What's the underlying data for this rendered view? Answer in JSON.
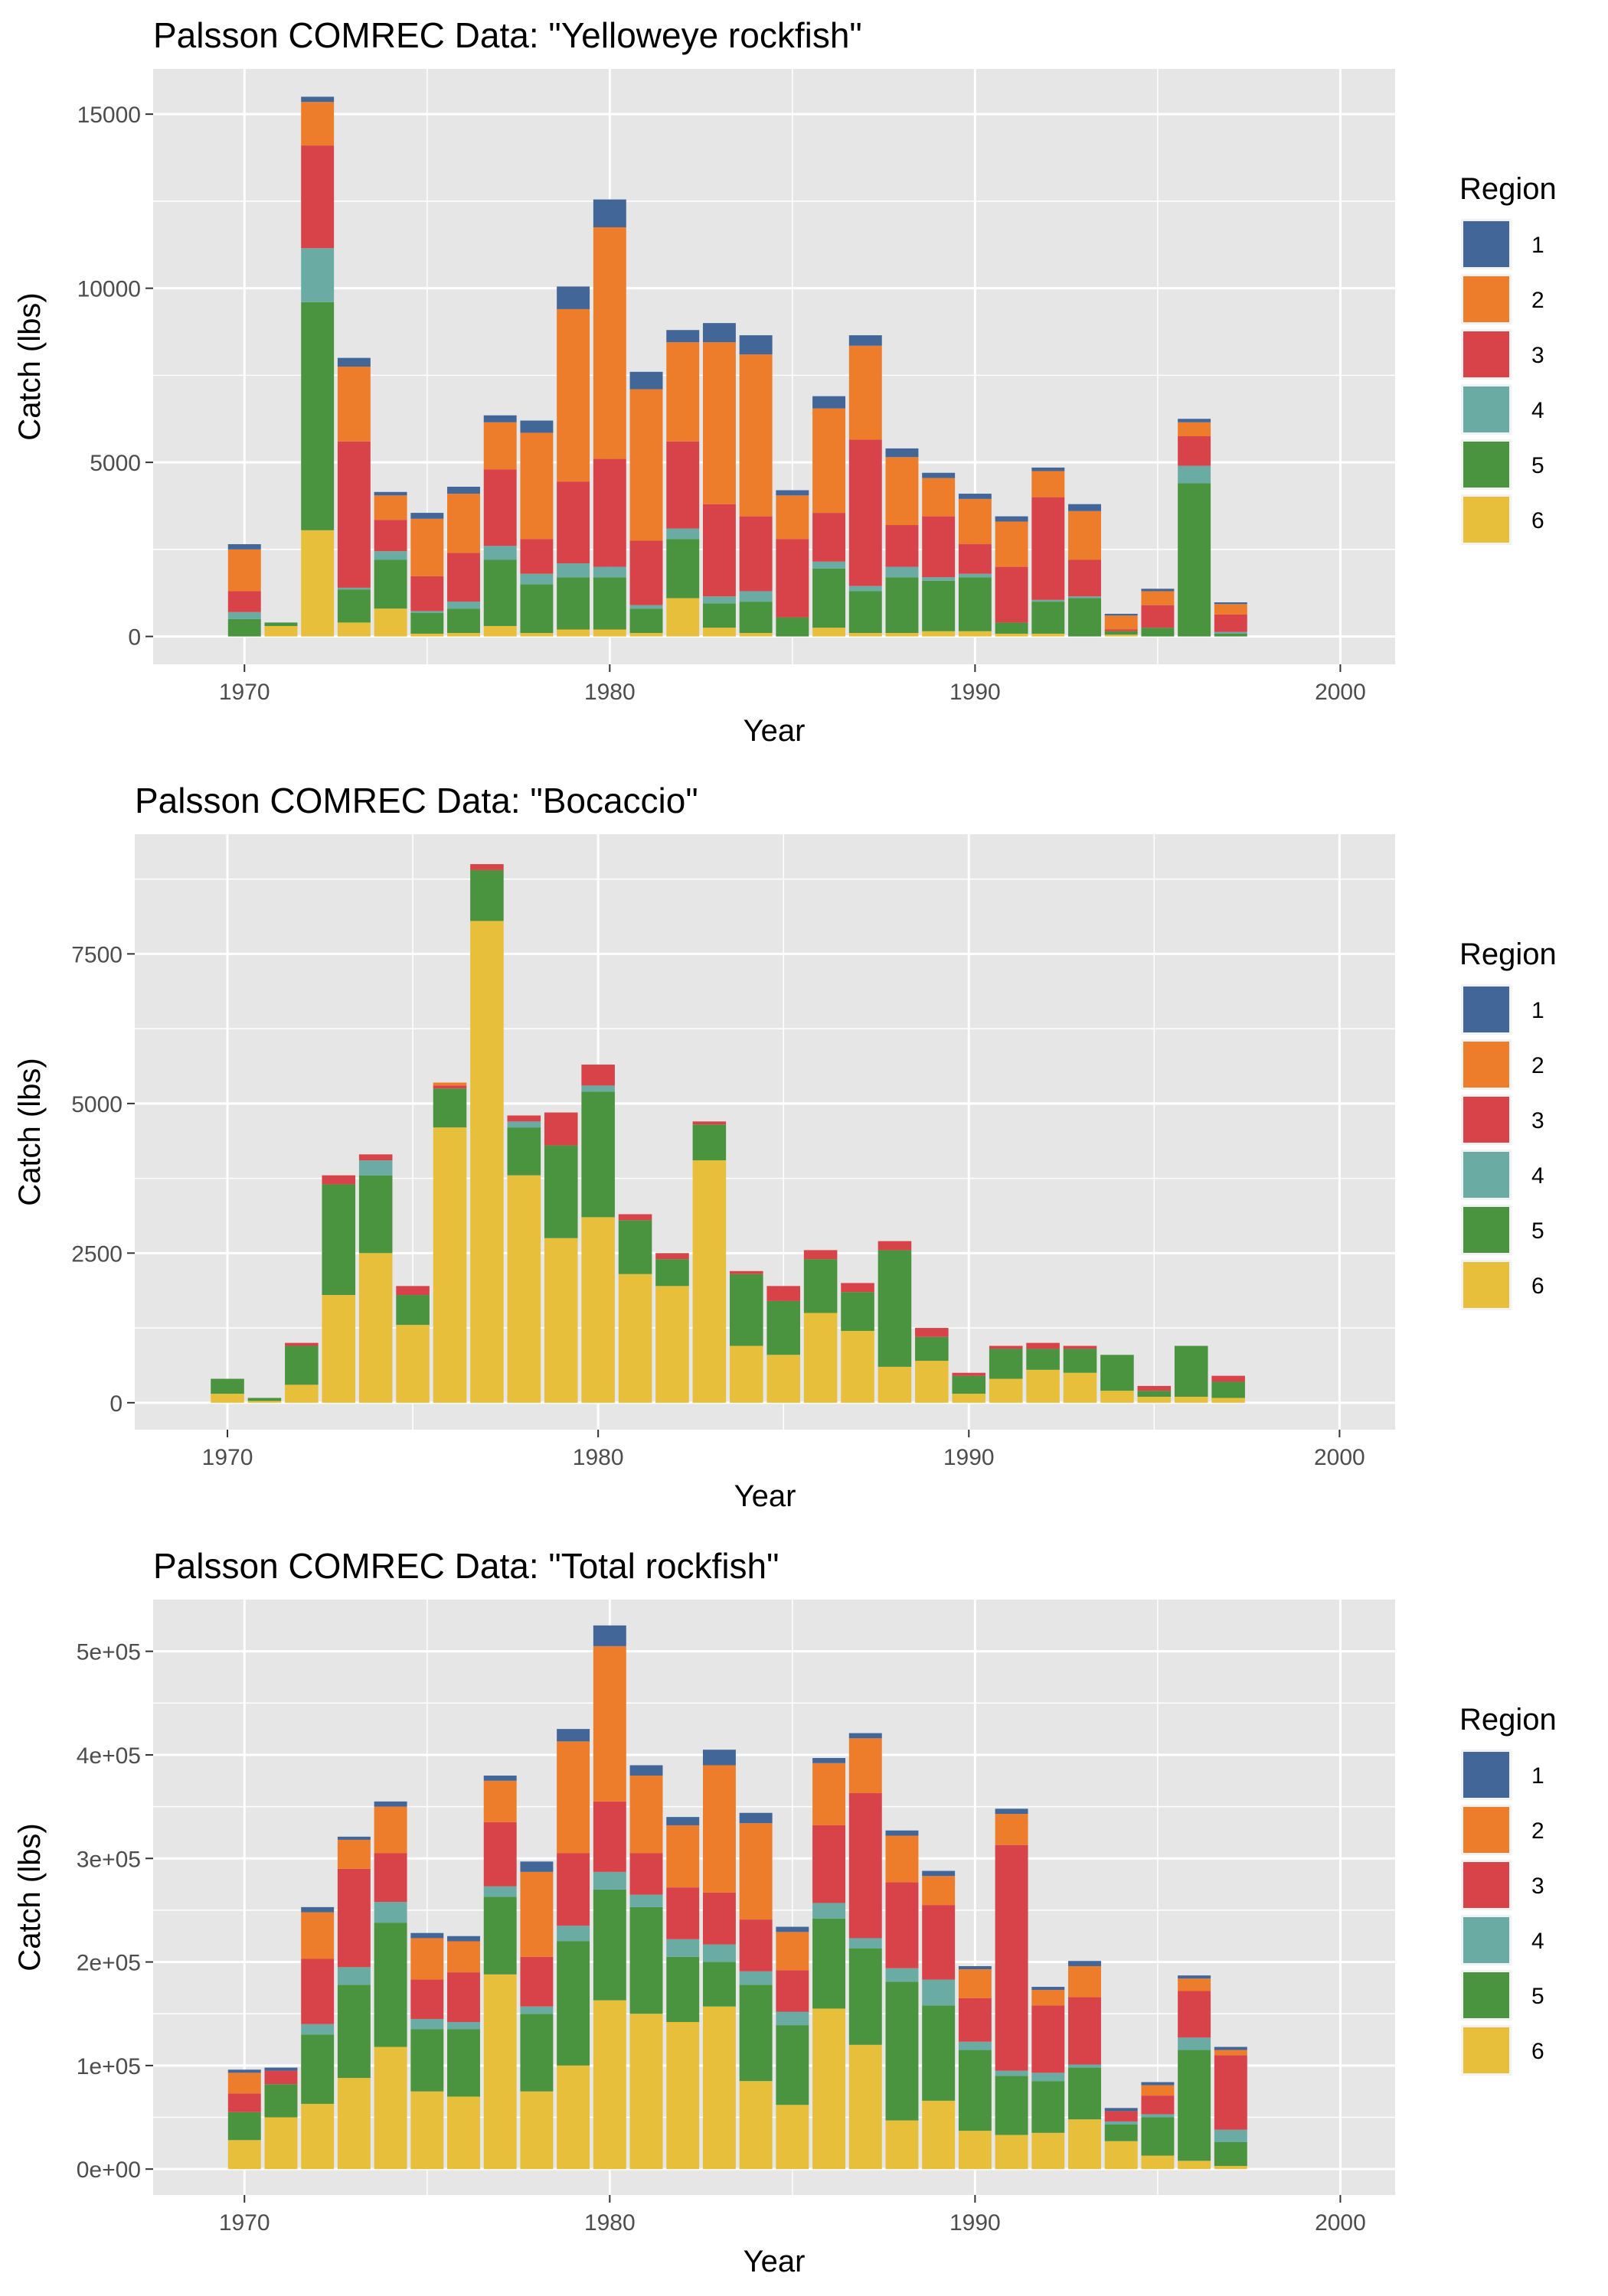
{
  "figure": {
    "legend_title": "Region",
    "legend_items": [
      "1",
      "2",
      "3",
      "4",
      "5",
      "6"
    ],
    "colors": {
      "1": "#436699",
      "2": "#ED7D2A",
      "3": "#D8434A",
      "4": "#6AABA4",
      "5": "#4A943F",
      "6": "#E8BF3A",
      "panel": "#E6E6E6",
      "grid": "#FFFFFF"
    }
  },
  "chart_data": [
    {
      "type": "bar",
      "stacked": true,
      "title": "Palsson COMREC Data: \"Yelloweye rockfish\"",
      "xlabel": "Year",
      "ylabel": "Catch (lbs)",
      "xlim": [
        1967.5,
        2001.5
      ],
      "ylim": [
        -800,
        16300
      ],
      "xticks": [
        1970,
        1980,
        1990,
        2000
      ],
      "xtick_labels": [
        "1970",
        "1980",
        "1990",
        "2000"
      ],
      "yticks": [
        0,
        5000,
        10000,
        15000
      ],
      "ytick_labels": [
        "0",
        "5000",
        "10000",
        "15000"
      ],
      "legend_title": "Region",
      "legend_position": "right",
      "grid": true,
      "x": [
        1970,
        1971,
        1972,
        1973,
        1974,
        1975,
        1976,
        1977,
        1978,
        1979,
        1980,
        1981,
        1982,
        1983,
        1984,
        1985,
        1986,
        1987,
        1988,
        1989,
        1990,
        1991,
        1992,
        1993,
        1994,
        1995,
        1996,
        1997
      ],
      "series": [
        {
          "name": "6",
          "values": [
            0,
            300,
            3050,
            400,
            800,
            80,
            100,
            300,
            100,
            200,
            200,
            100,
            1100,
            250,
            100,
            0,
            250,
            100,
            100,
            150,
            150,
            80,
            80,
            0,
            50,
            0,
            0,
            0
          ]
        },
        {
          "name": "5",
          "values": [
            500,
            100,
            6550,
            950,
            1400,
            600,
            700,
            1900,
            1400,
            1500,
            1500,
            700,
            1700,
            700,
            900,
            550,
            1700,
            1200,
            1600,
            1450,
            1550,
            320,
            920,
            1100,
            100,
            250,
            4400,
            80
          ]
        },
        {
          "name": "4",
          "values": [
            200,
            0,
            1550,
            50,
            250,
            50,
            200,
            400,
            300,
            400,
            300,
            100,
            300,
            200,
            300,
            0,
            200,
            150,
            300,
            100,
            100,
            0,
            50,
            50,
            0,
            0,
            500,
            50
          ]
        },
        {
          "name": "3",
          "values": [
            600,
            0,
            2950,
            4200,
            900,
            1000,
            1400,
            2200,
            1000,
            2350,
            3100,
            1850,
            2500,
            2650,
            2150,
            2250,
            1400,
            4200,
            1200,
            1750,
            850,
            1600,
            2950,
            1050,
            50,
            650,
            850,
            500
          ]
        },
        {
          "name": "2",
          "values": [
            1200,
            0,
            1250,
            2150,
            700,
            1650,
            1700,
            1350,
            3050,
            4950,
            6650,
            4350,
            2850,
            4650,
            4650,
            1250,
            3000,
            2700,
            1950,
            1100,
            1300,
            1300,
            750,
            1400,
            400,
            400,
            400,
            300
          ]
        },
        {
          "name": "1",
          "values": [
            150,
            0,
            150,
            250,
            100,
            170,
            200,
            200,
            350,
            650,
            800,
            500,
            350,
            550,
            550,
            150,
            350,
            300,
            250,
            150,
            150,
            150,
            100,
            200,
            50,
            70,
            100,
            50
          ]
        }
      ]
    },
    {
      "type": "bar",
      "stacked": true,
      "title": "Palsson COMREC Data: \"Bocaccio\"",
      "xlabel": "Year",
      "ylabel": "Catch (lbs)",
      "xlim": [
        1967.5,
        2001.5
      ],
      "ylim": [
        -450,
        9500
      ],
      "xticks": [
        1970,
        1980,
        1990,
        2000
      ],
      "xtick_labels": [
        "1970",
        "1980",
        "1990",
        "2000"
      ],
      "yticks": [
        0,
        2500,
        5000,
        7500
      ],
      "ytick_labels": [
        "0",
        "2500",
        "5000",
        "7500"
      ],
      "legend_title": "Region",
      "legend_position": "right",
      "grid": true,
      "x": [
        1970,
        1971,
        1972,
        1973,
        1974,
        1975,
        1976,
        1977,
        1978,
        1979,
        1980,
        1981,
        1982,
        1983,
        1984,
        1985,
        1986,
        1987,
        1988,
        1989,
        1990,
        1991,
        1992,
        1993,
        1994,
        1995,
        1996,
        1997
      ],
      "series": [
        {
          "name": "6",
          "values": [
            150,
            30,
            300,
            1800,
            2500,
            1300,
            4600,
            8050,
            3800,
            2750,
            3100,
            2150,
            1950,
            4050,
            950,
            800,
            1500,
            1200,
            600,
            700,
            150,
            400,
            550,
            500,
            200,
            100,
            100,
            80
          ]
        },
        {
          "name": "5",
          "values": [
            250,
            50,
            650,
            1850,
            1300,
            500,
            650,
            850,
            800,
            1550,
            2100,
            900,
            450,
            600,
            1200,
            900,
            900,
            650,
            1950,
            400,
            300,
            500,
            350,
            400,
            600,
            100,
            850,
            270
          ]
        },
        {
          "name": "4",
          "values": [
            0,
            0,
            0,
            0,
            250,
            0,
            0,
            0,
            100,
            0,
            100,
            0,
            0,
            0,
            0,
            0,
            0,
            0,
            0,
            0,
            0,
            0,
            0,
            0,
            0,
            0,
            0,
            0
          ]
        },
        {
          "name": "3",
          "values": [
            0,
            0,
            50,
            150,
            100,
            150,
            50,
            100,
            100,
            550,
            350,
            100,
            100,
            50,
            50,
            250,
            150,
            150,
            150,
            150,
            50,
            50,
            100,
            50,
            0,
            80,
            0,
            100
          ]
        },
        {
          "name": "2",
          "values": [
            0,
            0,
            0,
            0,
            0,
            0,
            50,
            0,
            0,
            0,
            0,
            0,
            0,
            0,
            0,
            0,
            0,
            0,
            0,
            0,
            0,
            0,
            0,
            0,
            0,
            0,
            0,
            0
          ]
        },
        {
          "name": "1",
          "values": [
            0,
            0,
            0,
            0,
            0,
            0,
            0,
            0,
            0,
            0,
            0,
            0,
            0,
            0,
            0,
            0,
            0,
            0,
            0,
            0,
            0,
            0,
            0,
            0,
            0,
            0,
            0,
            0
          ]
        }
      ]
    },
    {
      "type": "bar",
      "stacked": true,
      "title": "Palsson COMREC Data: \"Total rockfish\"",
      "xlabel": "Year",
      "ylabel": "Catch (lbs)",
      "xlim": [
        1967.5,
        2001.5
      ],
      "ylim": [
        -25000,
        550000
      ],
      "xticks": [
        1970,
        1980,
        1990,
        2000
      ],
      "xtick_labels": [
        "1970",
        "1980",
        "1990",
        "2000"
      ],
      "yticks": [
        0,
        100000,
        200000,
        300000,
        400000,
        500000
      ],
      "ytick_labels": [
        "0e+00",
        "1e+05",
        "2e+05",
        "3e+05",
        "4e+05",
        "5e+05"
      ],
      "legend_title": "Region",
      "legend_position": "right",
      "grid": true,
      "x": [
        1970,
        1971,
        1972,
        1973,
        1974,
        1975,
        1976,
        1977,
        1978,
        1979,
        1980,
        1981,
        1982,
        1983,
        1984,
        1985,
        1986,
        1987,
        1988,
        1989,
        1990,
        1991,
        1992,
        1993,
        1994,
        1995,
        1996,
        1997
      ],
      "series": [
        {
          "name": "6",
          "values": [
            28000,
            50000,
            63000,
            88000,
            118000,
            75000,
            70000,
            188000,
            75000,
            100000,
            163000,
            150000,
            142000,
            157000,
            85000,
            62000,
            155000,
            120000,
            47000,
            66000,
            37000,
            33000,
            35000,
            48000,
            27000,
            13000,
            8000,
            3000
          ]
        },
        {
          "name": "5",
          "values": [
            27000,
            32000,
            67000,
            90000,
            120000,
            60000,
            65000,
            75000,
            75000,
            120000,
            107000,
            103000,
            63000,
            43000,
            93000,
            77000,
            87000,
            93000,
            134000,
            92000,
            78000,
            57000,
            50000,
            50000,
            16000,
            37000,
            107000,
            23000
          ]
        },
        {
          "name": "4",
          "values": [
            0,
            0,
            10000,
            17000,
            20000,
            10000,
            7000,
            10000,
            7000,
            15000,
            17000,
            12000,
            17000,
            17000,
            13000,
            13000,
            15000,
            10000,
            13000,
            25000,
            8000,
            5000,
            8000,
            3000,
            3000,
            3000,
            12000,
            12000
          ]
        },
        {
          "name": "3",
          "values": [
            18000,
            13000,
            63000,
            95000,
            47000,
            38000,
            48000,
            62000,
            48000,
            70000,
            68000,
            40000,
            50000,
            50000,
            50000,
            40000,
            75000,
            140000,
            83000,
            72000,
            42000,
            218000,
            65000,
            65000,
            10000,
            18000,
            45000,
            72000
          ]
        },
        {
          "name": "2",
          "values": [
            20000,
            0,
            45000,
            28000,
            45000,
            40000,
            30000,
            40000,
            82000,
            108000,
            150000,
            75000,
            60000,
            123000,
            93000,
            37000,
            60000,
            53000,
            45000,
            28000,
            28000,
            30000,
            15000,
            30000,
            0,
            10000,
            12000,
            5000
          ]
        },
        {
          "name": "1",
          "values": [
            3000,
            3000,
            5000,
            3000,
            5000,
            5000,
            5000,
            5000,
            10000,
            12000,
            20000,
            10000,
            8000,
            15000,
            10000,
            5000,
            5000,
            5000,
            5000,
            5000,
            3000,
            5000,
            3000,
            5000,
            3000,
            3000,
            3000,
            3000
          ]
        }
      ]
    }
  ]
}
